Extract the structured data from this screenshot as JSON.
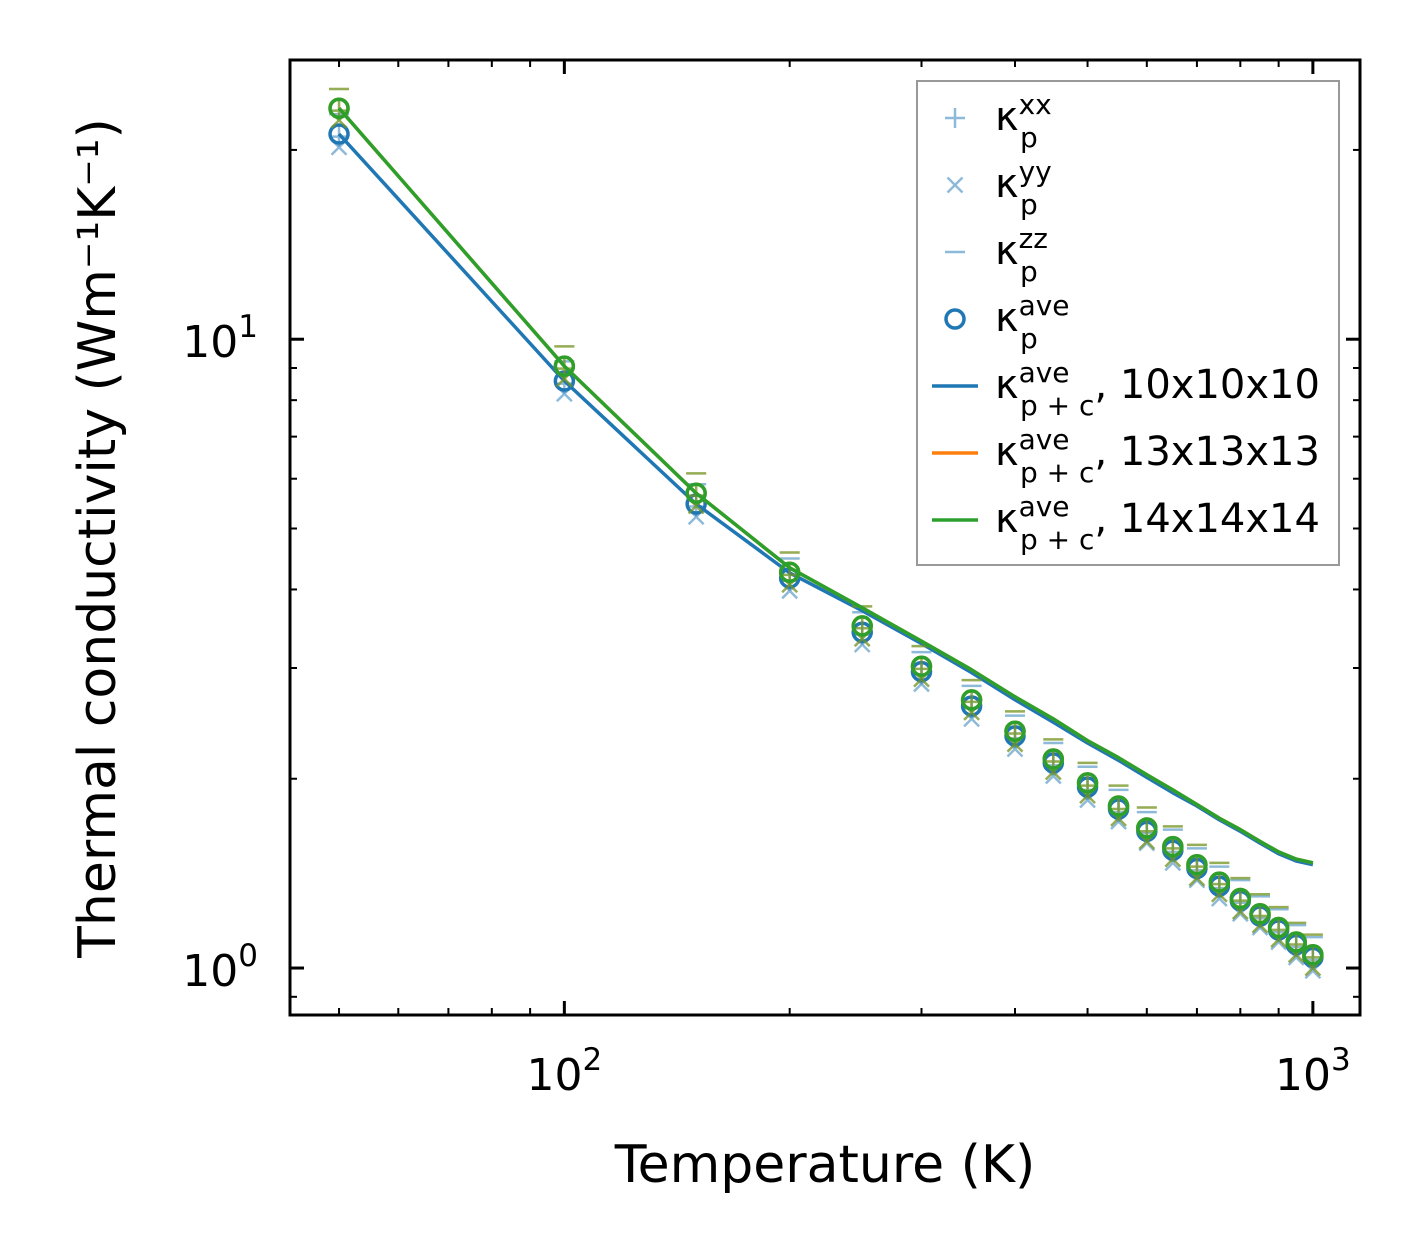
{
  "chart_data": {
    "type": "scatter",
    "xlabel": "Temperature (K)",
    "ylabel": "Thermal conductivity (Wm⁻¹K⁻¹)",
    "xscale": "log",
    "yscale": "log",
    "xlim": [
      43,
      1156
    ],
    "ylim": [
      0.842,
      27.8
    ],
    "grid": false,
    "legend_position": "top-right",
    "x_ticks": [
      {
        "base": "10",
        "exp": "2",
        "value": 100
      },
      {
        "base": "10",
        "exp": "3",
        "value": 1000
      }
    ],
    "y_ticks": [
      {
        "base": "10",
        "exp": "0",
        "value": 1
      },
      {
        "base": "10",
        "exp": "1",
        "value": 10
      }
    ],
    "x": [
      50,
      100,
      150,
      200,
      250,
      300,
      350,
      400,
      450,
      500,
      550,
      600,
      650,
      700,
      750,
      800,
      850,
      900,
      950,
      1000
    ],
    "series": [
      {
        "mesh": "10x10x10",
        "color": "#1f77b4",
        "kp_xx": [
          21.0,
          8.5,
          5.42,
          4.13,
          3.39,
          2.93,
          2.59,
          2.32,
          2.1,
          1.92,
          1.77,
          1.64,
          1.53,
          1.43,
          1.34,
          1.27,
          1.2,
          1.14,
          1.08,
          1.03
        ],
        "kp_yy": [
          20.2,
          8.19,
          5.22,
          3.98,
          3.27,
          2.83,
          2.49,
          2.23,
          2.02,
          1.85,
          1.71,
          1.58,
          1.47,
          1.38,
          1.29,
          1.22,
          1.16,
          1.1,
          1.04,
          0.99
        ],
        "kp_zz": [
          22.8,
          9.22,
          5.88,
          4.48,
          3.68,
          3.18,
          2.81,
          2.52,
          2.28,
          2.09,
          1.92,
          1.77,
          1.66,
          1.55,
          1.45,
          1.38,
          1.3,
          1.24,
          1.17,
          1.12
        ],
        "kp_ave": [
          21.2,
          8.58,
          5.47,
          4.17,
          3.42,
          2.96,
          2.61,
          2.34,
          2.12,
          1.94,
          1.79,
          1.65,
          1.54,
          1.44,
          1.35,
          1.28,
          1.21,
          1.15,
          1.09,
          1.04
        ],
        "kpc_ave": [
          21.2,
          8.58,
          5.47,
          4.25,
          3.7,
          3.28,
          2.95,
          2.67,
          2.46,
          2.28,
          2.14,
          2.01,
          1.9,
          1.81,
          1.72,
          1.65,
          1.58,
          1.52,
          1.48,
          1.46
        ]
      },
      {
        "mesh": "13x13x13",
        "color": "#ff7f0e",
        "kp_xx": [
          23.1,
          8.98,
          5.64,
          4.22,
          3.47,
          2.99,
          2.65,
          2.36,
          2.13,
          1.95,
          1.79,
          1.65,
          1.55,
          1.45,
          1.36,
          1.28,
          1.21,
          1.15,
          1.09,
          1.04
        ],
        "kp_yy": [
          22.3,
          8.65,
          5.43,
          4.07,
          3.34,
          2.88,
          2.55,
          2.27,
          2.05,
          1.88,
          1.73,
          1.59,
          1.49,
          1.39,
          1.31,
          1.23,
          1.17,
          1.11,
          1.05,
          1.0
        ],
        "kp_zz": [
          25.0,
          9.74,
          6.12,
          4.58,
          3.76,
          3.25,
          2.87,
          2.56,
          2.31,
          2.12,
          1.95,
          1.8,
          1.68,
          1.57,
          1.47,
          1.39,
          1.31,
          1.25,
          1.18,
          1.13
        ],
        "kp_ave": [
          23.3,
          9.06,
          5.69,
          4.26,
          3.5,
          3.02,
          2.67,
          2.38,
          2.15,
          1.97,
          1.81,
          1.67,
          1.56,
          1.46,
          1.37,
          1.29,
          1.22,
          1.16,
          1.1,
          1.05
        ],
        "kpc_ave": [
          23.3,
          9.06,
          5.69,
          4.33,
          3.74,
          3.31,
          2.98,
          2.7,
          2.49,
          2.3,
          2.16,
          2.03,
          1.92,
          1.82,
          1.73,
          1.66,
          1.59,
          1.53,
          1.49,
          1.47
        ]
      },
      {
        "mesh": "14x14x14",
        "color": "#2ca02c",
        "kp_xx": [
          23.1,
          8.98,
          5.64,
          4.22,
          3.47,
          2.99,
          2.65,
          2.36,
          2.13,
          1.95,
          1.79,
          1.65,
          1.55,
          1.45,
          1.36,
          1.28,
          1.21,
          1.15,
          1.09,
          1.04
        ],
        "kp_yy": [
          22.3,
          8.65,
          5.43,
          4.07,
          3.34,
          2.88,
          2.55,
          2.27,
          2.05,
          1.88,
          1.73,
          1.59,
          1.49,
          1.39,
          1.31,
          1.23,
          1.17,
          1.11,
          1.05,
          1.0
        ],
        "kp_zz": [
          25.0,
          9.74,
          6.12,
          4.58,
          3.76,
          3.25,
          2.87,
          2.56,
          2.31,
          2.12,
          1.95,
          1.8,
          1.68,
          1.57,
          1.47,
          1.39,
          1.31,
          1.25,
          1.18,
          1.13
        ],
        "kp_ave": [
          23.3,
          9.06,
          5.69,
          4.26,
          3.5,
          3.02,
          2.67,
          2.38,
          2.15,
          1.97,
          1.81,
          1.67,
          1.56,
          1.46,
          1.37,
          1.29,
          1.22,
          1.16,
          1.1,
          1.05
        ],
        "kpc_ave": [
          23.3,
          9.06,
          5.69,
          4.33,
          3.74,
          3.31,
          2.98,
          2.7,
          2.49,
          2.3,
          2.16,
          2.03,
          1.92,
          1.82,
          1.73,
          1.66,
          1.59,
          1.53,
          1.49,
          1.47
        ]
      }
    ],
    "legend": [
      {
        "marker": "plus",
        "color": "#1f77b4",
        "base": "κ",
        "sub": "p",
        "sup": "xx",
        "suffix": ""
      },
      {
        "marker": "x",
        "color": "#1f77b4",
        "base": "κ",
        "sub": "p",
        "sup": "yy",
        "suffix": ""
      },
      {
        "marker": "dash",
        "color": "#1f77b4",
        "base": "κ",
        "sub": "p",
        "sup": "zz",
        "suffix": ""
      },
      {
        "marker": "circle",
        "color": "#1f77b4",
        "base": "κ",
        "sub": "p",
        "sup": "ave",
        "suffix": ""
      },
      {
        "marker": "line",
        "color": "#1f77b4",
        "base": "κ",
        "sub": "p + c",
        "sup": "ave",
        "suffix": ", 10x10x10"
      },
      {
        "marker": "line",
        "color": "#ff7f0e",
        "base": "κ",
        "sub": "p + c",
        "sup": "ave",
        "suffix": ", 13x13x13"
      },
      {
        "marker": "line",
        "color": "#2ca02c",
        "base": "κ",
        "sub": "p + c",
        "sup": "ave",
        "suffix": ", 14x14x14"
      }
    ]
  }
}
